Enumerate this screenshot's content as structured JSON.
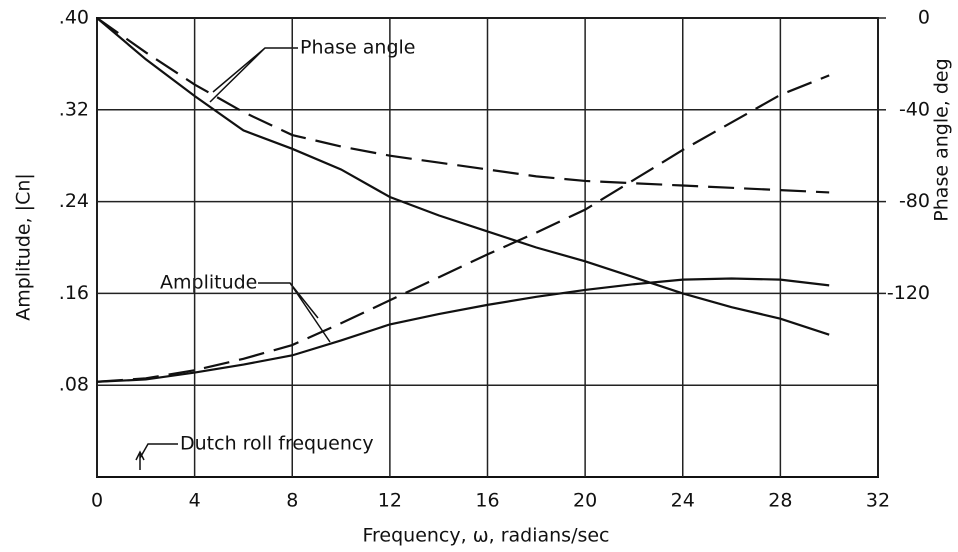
{
  "chart_data": {
    "type": "line",
    "x_label": "Frequency, ω, radians/sec",
    "y_label": "Amplitude, |Cn|",
    "y2_label": "Phase angle, deg",
    "annotations": [
      "Phase angle",
      "Amplitude",
      "Dutch roll frequency"
    ],
    "x": [
      0,
      2,
      4,
      6,
      8,
      10,
      12,
      14,
      16,
      18,
      20,
      22,
      24,
      26,
      28,
      30
    ],
    "series": [
      {
        "color": "#111111",
        "dash": false,
        "axis": "y2",
        "values": [
          0,
          -18,
          -34,
          -49,
          -57,
          -66,
          -78,
          -86,
          -93,
          -100,
          -106,
          -113,
          -120,
          -126,
          -131,
          -138
        ]
      },
      {
        "color": "#111111",
        "dash": true,
        "axis": "y2",
        "values": [
          0,
          -15,
          -29,
          -41,
          -51,
          -56,
          -60,
          -63,
          -66,
          -69,
          -71,
          -72,
          -73,
          -74,
          -75,
          -76
        ]
      },
      {
        "color": "#111111",
        "dash": false,
        "axis": "y",
        "values": [
          0.083,
          0.085,
          0.091,
          0.098,
          0.106,
          0.119,
          0.133,
          0.142,
          0.15,
          0.157,
          0.163,
          0.168,
          0.172,
          0.173,
          0.172,
          0.167
        ]
      },
      {
        "color": "#111111",
        "dash": true,
        "axis": "y",
        "values": [
          0.083,
          0.086,
          0.093,
          0.103,
          0.115,
          0.134,
          0.154,
          0.174,
          0.194,
          0.213,
          0.233,
          0.259,
          0.285,
          0.309,
          0.333,
          0.35
        ]
      }
    ],
    "xlim": [
      0,
      32
    ],
    "xticks": [
      0,
      4,
      8,
      12,
      16,
      20,
      24,
      28,
      32
    ],
    "ylim": [
      0,
      0.4
    ],
    "yticks": [
      {
        "value": 0.08,
        "label": ".08"
      },
      {
        "value": 0.16,
        "label": ".16"
      },
      {
        "value": 0.24,
        "label": ".24"
      },
      {
        "value": 0.32,
        "label": ".32"
      },
      {
        "value": 0.4,
        "label": ".40"
      }
    ],
    "y2lim": [
      -200,
      0
    ],
    "y2ticks": [
      0,
      -40,
      -80,
      -120
    ],
    "grid": true
  }
}
